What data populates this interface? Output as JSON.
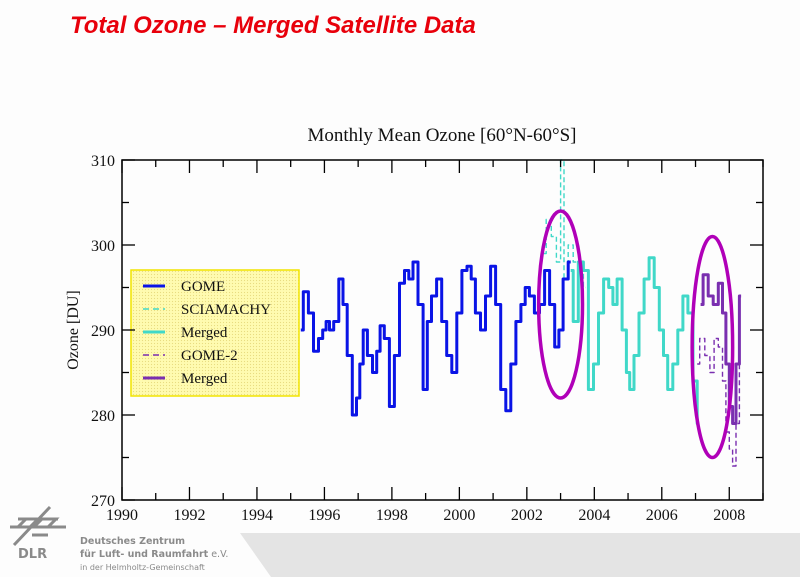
{
  "slide": {
    "title": "Total Ozone – Merged Satellite Data",
    "organization": {
      "logo_text": "DLR",
      "line1": "Deutsches Zentrum",
      "line2_bold": "für Luft- und Raumfahrt",
      "line2_suffix": " e.V.",
      "line3": "in der Helmholtz-Gemeinschaft"
    }
  },
  "colors": {
    "title": "#e8000b",
    "gome": "#0a14e6",
    "sciamachy": "#40d8c8",
    "merged1": "#40d8c8",
    "gome2": "#7a2fb0",
    "merged2": "#7a2fb0",
    "highlight": "#b000b8",
    "legend_bg": "#fffbb0",
    "legend_border": "#f2e400",
    "footer": "#e4e4e4"
  },
  "chart_data": {
    "type": "line",
    "title": "Monthly Mean Ozone [60°N-60°S]",
    "xlabel": "",
    "ylabel": "Ozone [DU]",
    "xlim": [
      1990,
      2009
    ],
    "ylim": [
      270,
      310
    ],
    "xticks": [
      1990,
      1992,
      1994,
      1996,
      1998,
      2000,
      2002,
      2004,
      2006,
      2008
    ],
    "yticks": [
      270,
      280,
      290,
      300,
      310
    ],
    "grid": false,
    "legend_position": "left",
    "legend": [
      "GOME",
      "SCIAMACHY",
      "Merged",
      "GOME-2",
      "Merged"
    ],
    "series": [
      {
        "name": "GOME",
        "style": "solid",
        "color_key": "gome",
        "x": [
          1995.3,
          1995.45,
          1995.6,
          1995.75,
          1995.9,
          1996.0,
          1996.1,
          1996.2,
          1996.35,
          1996.5,
          1996.6,
          1996.75,
          1996.9,
          1997.0,
          1997.1,
          1997.2,
          1997.35,
          1997.5,
          1997.6,
          1997.7,
          1997.85,
          1998.0,
          1998.15,
          1998.3,
          1998.45,
          1998.55,
          1998.7,
          1998.85,
          1999.0,
          1999.1,
          1999.25,
          1999.4,
          1999.55,
          1999.7,
          1999.85,
          2000.0,
          2000.15,
          2000.3,
          2000.4,
          2000.55,
          2000.7,
          2000.85,
          2001.0,
          2001.15,
          2001.3,
          2001.45,
          2001.6,
          2001.75,
          2001.9,
          2002.0,
          2002.15,
          2002.3,
          2002.45,
          2002.6,
          2002.75,
          2002.9,
          2003.0,
          2003.15,
          2003.3
        ],
        "values": [
          290,
          294.5,
          292,
          287.5,
          289,
          290,
          291,
          290,
          291,
          296,
          293,
          287,
          280,
          282,
          286,
          290,
          287,
          285,
          287.5,
          290.5,
          289,
          281,
          287,
          295.5,
          297,
          296,
          298,
          293,
          283,
          291,
          294,
          296,
          291,
          287,
          285,
          292,
          297,
          297.5,
          296,
          292,
          290,
          294,
          297.5,
          293,
          283,
          280.5,
          286,
          291,
          293,
          295,
          294,
          292,
          293,
          297,
          293,
          288,
          290,
          296,
          298
        ]
      },
      {
        "name": "SCIAMACHY",
        "style": "dashed",
        "color_key": "sciamachy",
        "x": [
          2002.5,
          2002.65,
          2002.8,
          2002.95,
          2003.05,
          2003.15,
          2003.3,
          2003.45,
          2003.6,
          2003.75
        ],
        "values": [
          299,
          303,
          301,
          298,
          310,
          296,
          300,
          298,
          297,
          295
        ]
      },
      {
        "name": "Merged",
        "style": "solid",
        "color_key": "merged1",
        "x": [
          2003.3,
          2003.45,
          2003.6,
          2003.75,
          2003.9,
          2004.05,
          2004.2,
          2004.35,
          2004.5,
          2004.6,
          2004.75,
          2004.9,
          2005.0,
          2005.1,
          2005.25,
          2005.4,
          2005.55,
          2005.7,
          2005.85,
          2006.0,
          2006.1,
          2006.25,
          2006.4,
          2006.55,
          2006.7,
          2006.85,
          2007.0,
          2007.1
        ],
        "values": [
          297,
          291,
          298,
          297,
          283,
          286,
          292,
          296,
          295,
          293,
          296,
          290,
          285,
          283,
          287,
          292,
          296,
          298.5,
          295,
          290,
          287,
          283,
          286,
          290,
          294,
          292,
          284,
          279
        ]
      },
      {
        "name": "GOME-2",
        "style": "dashed",
        "color_key": "gome2",
        "x": [
          2007.05,
          2007.2,
          2007.35,
          2007.5,
          2007.6,
          2007.75,
          2007.85,
          2007.95,
          2008.05,
          2008.15,
          2008.25,
          2008.35
        ],
        "values": [
          286,
          289,
          287,
          285,
          289,
          288,
          284,
          278,
          276,
          274,
          279,
          288
        ]
      },
      {
        "name": "Merged",
        "style": "solid",
        "color_key": "merged2",
        "x": [
          2007.15,
          2007.3,
          2007.45,
          2007.6,
          2007.75,
          2007.85,
          2007.95,
          2008.05,
          2008.15,
          2008.25,
          2008.35
        ],
        "values": [
          293,
          296.5,
          294,
          293,
          295.5,
          292,
          286,
          281,
          279,
          286,
          294
        ]
      }
    ],
    "annotations": [
      {
        "type": "ellipse",
        "label": "highlight-2002-2003",
        "center": [
          2003.0,
          293
        ],
        "radii_years": 0.65,
        "radii_du": 11
      },
      {
        "type": "ellipse",
        "label": "highlight-2007-2008",
        "center": [
          2007.5,
          288
        ],
        "radii_years": 0.6,
        "radii_du": 13
      }
    ]
  }
}
